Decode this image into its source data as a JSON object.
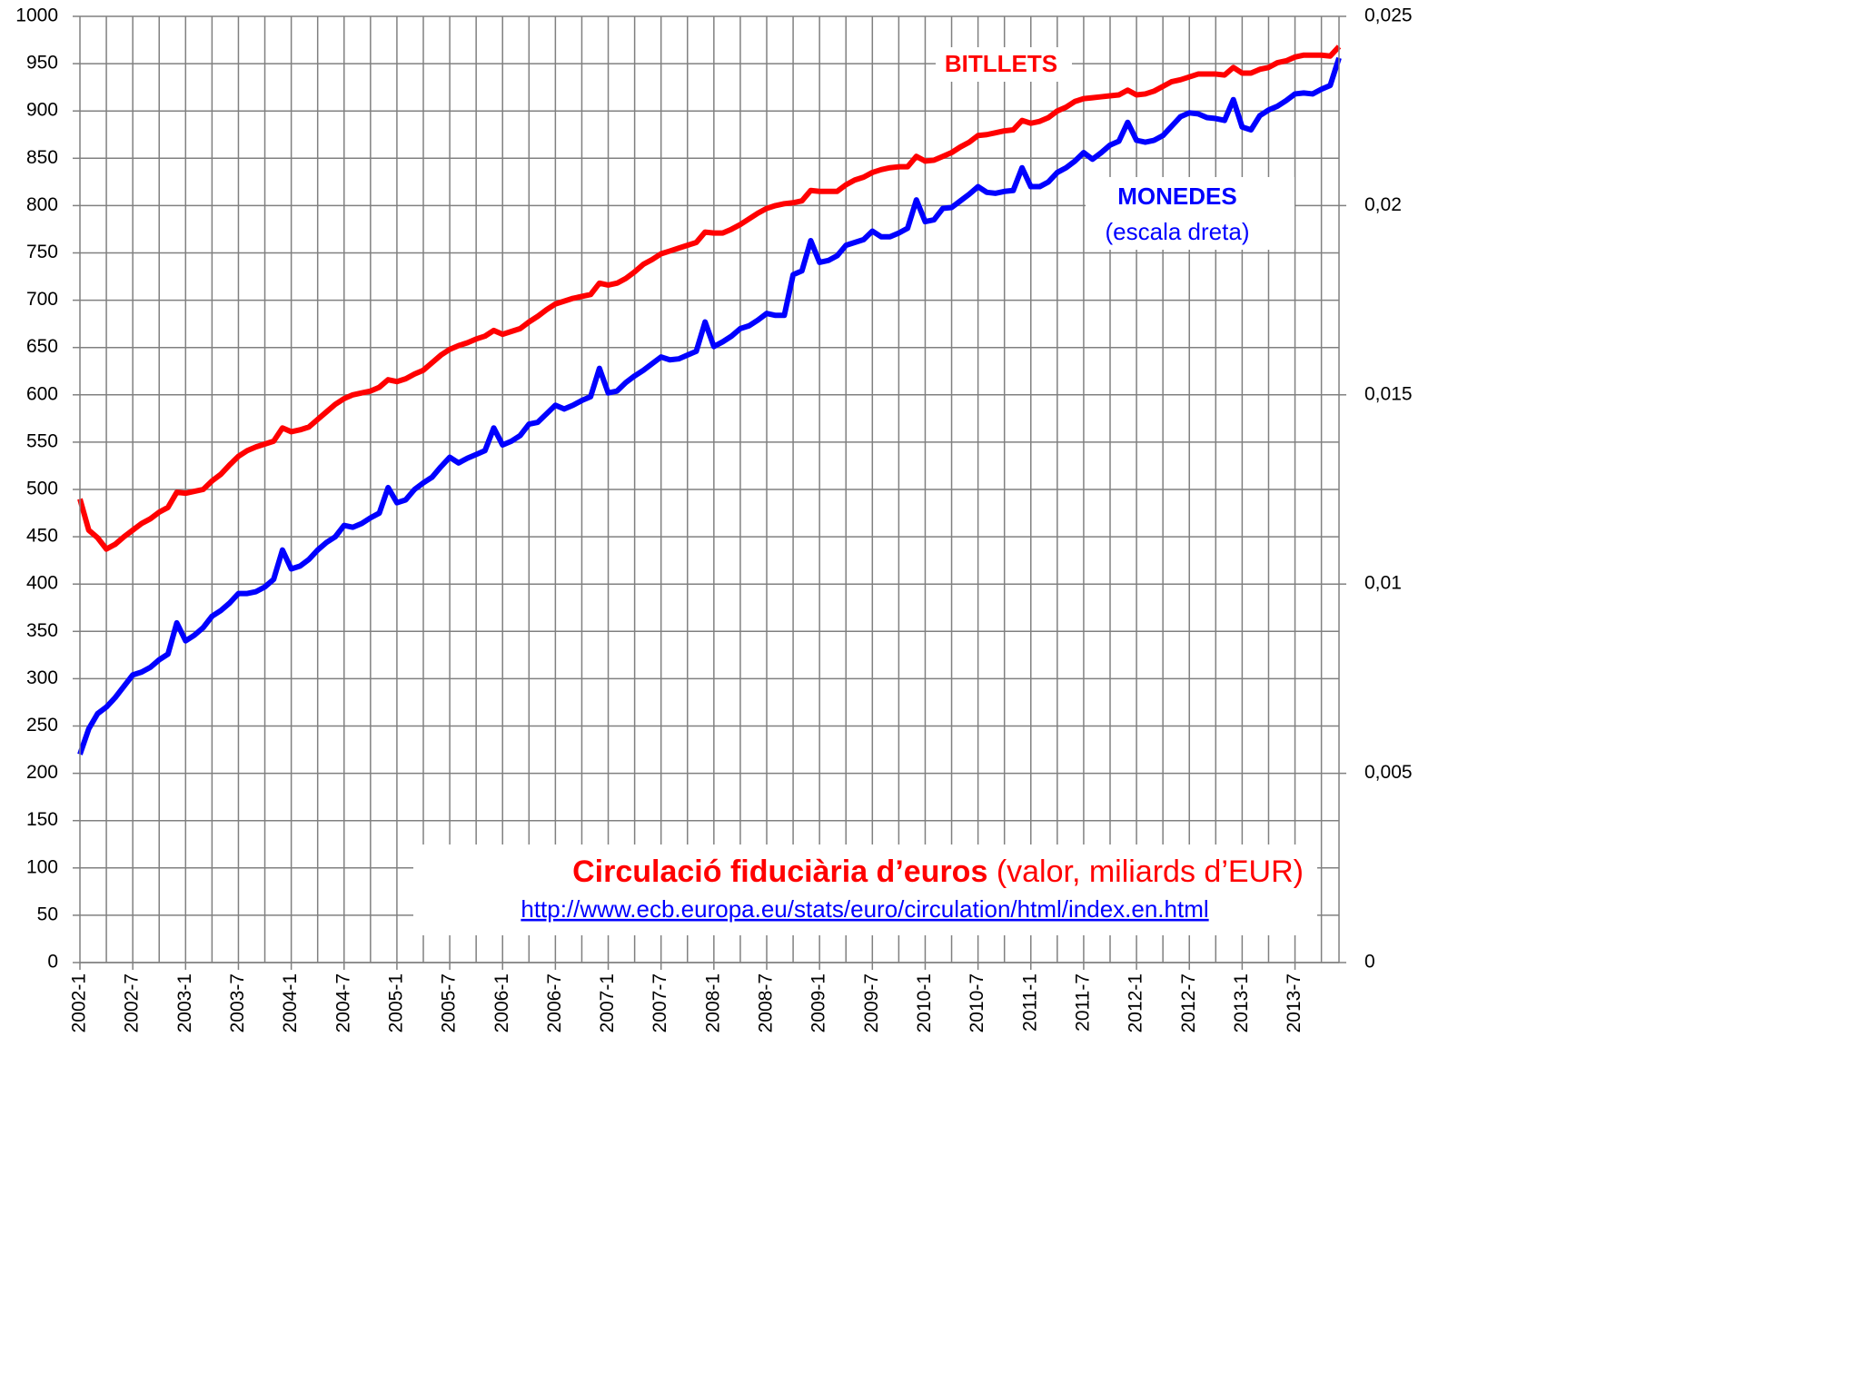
{
  "chart_data": {
    "type": "line",
    "title": "Circulació fiduciària d’euros",
    "subtitle": "(valor, miliards d’EUR)",
    "source": "http://www.ecb.europa.eu/stats/euro/circulation/html/index.en.html",
    "annotation": "(escala dreta)",
    "categories": [
      "2002-1",
      null,
      null,
      null,
      null,
      null,
      "2002-7",
      null,
      null,
      null,
      null,
      null,
      "2003-1",
      null,
      null,
      null,
      null,
      null,
      "2003-7",
      null,
      null,
      null,
      null,
      null,
      "2004-1",
      null,
      null,
      null,
      null,
      null,
      "2004-7",
      null,
      null,
      null,
      null,
      null,
      "2005-1",
      null,
      null,
      null,
      null,
      null,
      "2005-7",
      null,
      null,
      null,
      null,
      null,
      "2006-1",
      null,
      null,
      null,
      null,
      null,
      "2006-7",
      null,
      null,
      null,
      null,
      null,
      "2007-1",
      null,
      null,
      null,
      null,
      null,
      "2007-7",
      null,
      null,
      null,
      null,
      null,
      "2008-1",
      null,
      null,
      null,
      null,
      null,
      "2008-7",
      null,
      null,
      null,
      null,
      null,
      "2009-1",
      null,
      null,
      null,
      null,
      null,
      "2009-7",
      null,
      null,
      null,
      null,
      null,
      "2010-1",
      null,
      null,
      null,
      null,
      null,
      "2010-7",
      null,
      null,
      null,
      null,
      null,
      "2011-1",
      null,
      null,
      null,
      null,
      null,
      "2011-7",
      null,
      null,
      null,
      null,
      null,
      "2012-1",
      null,
      null,
      null,
      null,
      null,
      "2012-7",
      null,
      null,
      null,
      null,
      null,
      "2013-1",
      null,
      null,
      null,
      null,
      null,
      "2013-7",
      null,
      null,
      null,
      null,
      null
    ],
    "series": [
      {
        "name": "BITLLETS",
        "color": "#ff0000",
        "values": [
          490,
          457,
          449,
          437,
          442,
          450,
          457,
          464,
          469,
          476,
          481,
          497,
          496,
          498,
          500,
          509,
          516,
          526,
          535,
          541,
          545,
          548,
          551,
          565,
          561,
          563,
          566,
          574,
          582,
          590,
          596,
          600,
          602,
          604,
          608,
          616,
          614,
          617,
          622,
          626,
          634,
          642,
          648,
          652,
          655,
          659,
          662,
          668,
          664,
          667,
          670,
          677,
          683,
          690,
          696,
          699,
          702,
          704,
          706,
          718,
          716,
          718,
          723,
          730,
          738,
          743,
          749,
          752,
          755,
          758,
          761,
          772,
          771,
          771,
          775,
          780,
          786,
          792,
          797,
          800,
          802,
          803,
          805,
          816,
          815,
          815,
          815,
          822,
          827,
          830,
          835,
          838,
          840,
          841,
          841,
          852,
          847,
          848,
          852,
          856,
          862,
          867,
          874,
          875,
          877,
          879,
          880,
          890,
          887,
          889,
          893,
          900,
          904,
          910,
          913,
          914,
          915,
          916,
          917,
          922,
          917,
          918,
          921,
          926,
          931,
          933,
          936,
          939,
          939,
          939,
          938,
          946,
          940,
          940,
          944,
          946,
          951,
          953,
          957,
          959,
          959,
          959,
          958,
          968
        ]
      },
      {
        "name": "MONEDES",
        "color": "#0000ff",
        "axis": "y2",
        "values": [
          0.0055,
          0.006175,
          0.006575,
          0.00675,
          0.007,
          0.0073,
          0.0076,
          0.007675,
          0.0078,
          0.008,
          0.00815,
          0.008975,
          0.0085,
          0.00865,
          0.00885,
          0.00915,
          0.0093,
          0.0095,
          0.00975,
          0.00975,
          0.0098,
          0.009925,
          0.010125,
          0.0109,
          0.0104,
          0.010475,
          0.01065,
          0.0109,
          0.0111,
          0.01125,
          0.01155,
          0.0115,
          0.0116,
          0.01175,
          0.011875,
          0.01255,
          0.01215,
          0.012225,
          0.0125,
          0.012675,
          0.012825,
          0.0131,
          0.01335,
          0.0132,
          0.013325,
          0.013425,
          0.013525,
          0.014125,
          0.013675,
          0.013775,
          0.013925,
          0.014225,
          0.014275,
          0.0145,
          0.014725,
          0.014625,
          0.014725,
          0.01485,
          0.01495,
          0.0157,
          0.01505,
          0.0151,
          0.015325,
          0.0155,
          0.01565,
          0.015825,
          0.016,
          0.015925,
          0.01595,
          0.01605,
          0.01615,
          0.016925,
          0.016275,
          0.0164,
          0.01655,
          0.01675,
          0.016825,
          0.016975,
          0.01715,
          0.0171,
          0.0171,
          0.018175,
          0.018275,
          0.019075,
          0.0185,
          0.01855,
          0.018675,
          0.01895,
          0.019025,
          0.0191,
          0.019325,
          0.019175,
          0.019175,
          0.019275,
          0.0194,
          0.02015,
          0.019575,
          0.019625,
          0.019925,
          0.01995,
          0.020125,
          0.0203,
          0.0205,
          0.02035,
          0.020325,
          0.020375,
          0.0204,
          0.021,
          0.0205,
          0.0205,
          0.020625,
          0.020875,
          0.021,
          0.021175,
          0.0214,
          0.021225,
          0.0214,
          0.0216,
          0.0217,
          0.0222,
          0.021725,
          0.021675,
          0.021725,
          0.02185,
          0.0221,
          0.02235,
          0.02245,
          0.022425,
          0.022325,
          0.0223,
          0.02225,
          0.0228,
          0.022075,
          0.022,
          0.022375,
          0.022525,
          0.022625,
          0.022775,
          0.02295,
          0.022975,
          0.02295,
          0.023075,
          0.023175,
          0.0239
        ]
      }
    ],
    "ylim": [
      0,
      1000
    ],
    "yticks": [
      0,
      50,
      100,
      150,
      200,
      250,
      300,
      350,
      400,
      450,
      500,
      550,
      600,
      650,
      700,
      750,
      800,
      850,
      900,
      950,
      1000
    ],
    "y2lim": [
      0,
      0.025
    ],
    "y2ticks": [
      0,
      {
        "value": 0.005,
        "label": "0,005"
      },
      {
        "value": 0.01,
        "label": "0,01"
      },
      {
        "value": 0.015,
        "label": "0,015"
      },
      {
        "value": 0.02,
        "label": "0,02"
      },
      {
        "value": 0.025,
        "label": "0,025"
      }
    ],
    "grid": true
  }
}
